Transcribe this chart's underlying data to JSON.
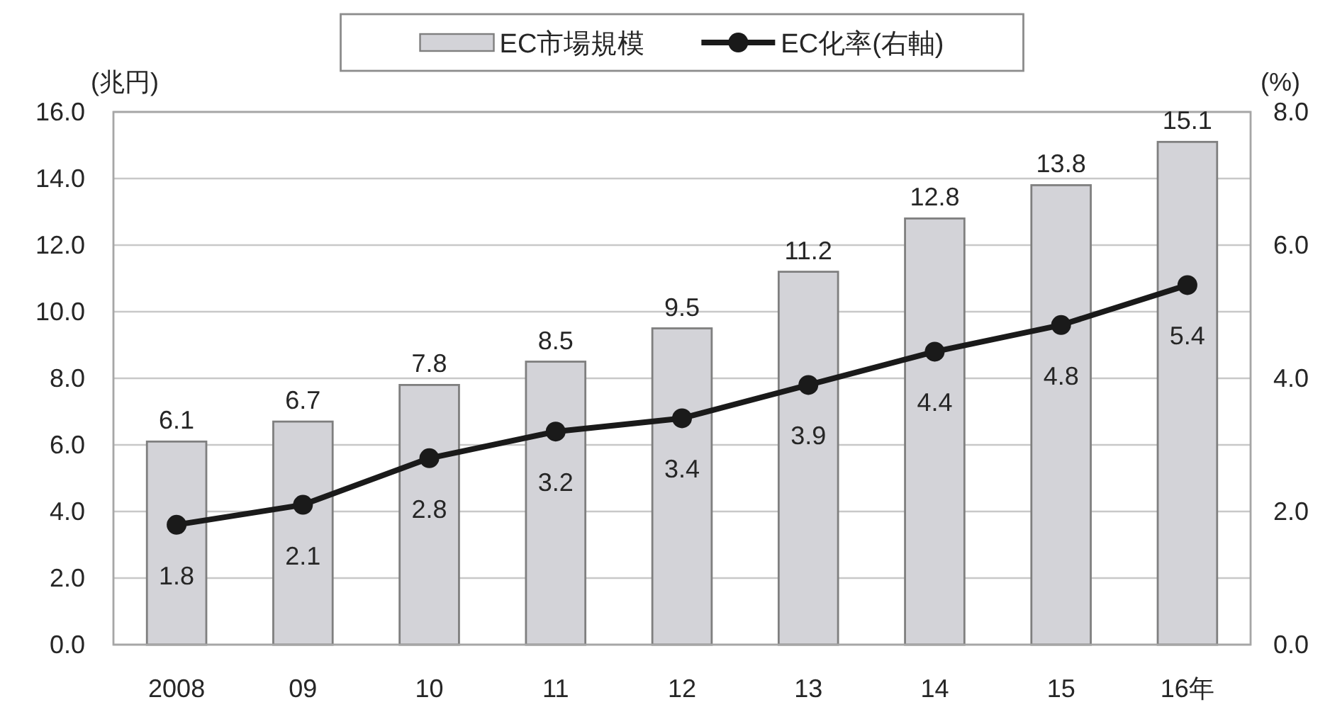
{
  "chart_data": {
    "type": "bar",
    "categories": [
      "2008",
      "09",
      "10",
      "11",
      "12",
      "13",
      "14",
      "15",
      "16年"
    ],
    "series": [
      {
        "name": "EC市場規模",
        "color": "#d3d3d8",
        "values": [
          6.1,
          6.7,
          7.8,
          8.5,
          9.5,
          11.2,
          12.8,
          13.8,
          15.1
        ]
      },
      {
        "name": "EC化率(右軸)",
        "type": "line",
        "axis": "y2",
        "color": "#1a1a1a",
        "marker": "circle",
        "values": [
          1.8,
          2.1,
          2.8,
          3.2,
          3.4,
          3.9,
          4.4,
          4.8,
          5.4
        ]
      }
    ],
    "ylabel": "(兆円)",
    "y2label": "(%)",
    "ylim": [
      0,
      16
    ],
    "yticks": [
      {
        "value": 0,
        "label": "0.0"
      },
      {
        "value": 2,
        "label": "2.0"
      },
      {
        "value": 4,
        "label": "4.0"
      },
      {
        "value": 6,
        "label": "6.0"
      },
      {
        "value": 8,
        "label": "8.0"
      },
      {
        "value": 10,
        "label": "10.0"
      },
      {
        "value": 12,
        "label": "12.0"
      },
      {
        "value": 14,
        "label": "14.0"
      },
      {
        "value": 16,
        "label": "16.0"
      }
    ],
    "y2lim": [
      0,
      8
    ],
    "y2ticks": [
      {
        "value": 0,
        "label": "0.0"
      },
      {
        "value": 2,
        "label": "2.0"
      },
      {
        "value": 4,
        "label": "4.0"
      },
      {
        "value": 6,
        "label": "6.0"
      },
      {
        "value": 8,
        "label": "8.0"
      }
    ],
    "grid": "y",
    "legend": "top",
    "data_labels": true
  }
}
